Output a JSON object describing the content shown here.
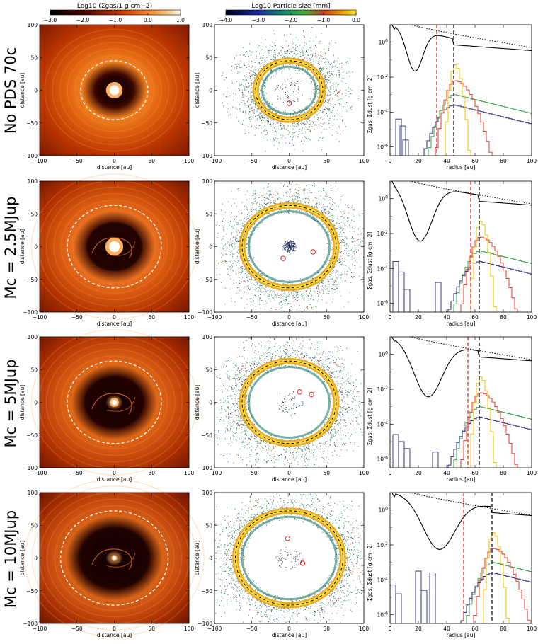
{
  "colorbars": {
    "gas": {
      "label": "Log10 (Σgas/1 g cm−2)",
      "ticks": [
        "−3.0",
        "−2.0",
        "−1.0",
        "0.0",
        "1.0"
      ]
    },
    "size": {
      "label": "Log10 Particle size [mm]",
      "ticks": [
        "−4.0",
        "−3.0",
        "−2.0",
        "−1.0",
        "0.0"
      ]
    }
  },
  "rows": [
    {
      "label": "No PDS 70c"
    },
    {
      "label": "Mc = 2.5MJup"
    },
    {
      "label": "Mc = 5MJup"
    },
    {
      "label": "Mc = 10MJup"
    }
  ],
  "axes": {
    "map_xlabel": "distance [au]",
    "map_ylabel": "distance [au]",
    "map_ticks": [
      "−100",
      "−50",
      "0",
      "50",
      "100"
    ],
    "profile_xlabel": "radius [au]",
    "profile_ylabel": "Σgas, Σdust [g cm−2]",
    "profile_xticks": [
      "0",
      "20",
      "40",
      "60",
      "80",
      "100"
    ],
    "profile_yticks": [
      "10^0",
      "10^-2",
      "10^-4",
      "10^-6"
    ]
  },
  "chart_data": {
    "type": "line",
    "xlim": [
      0,
      100
    ],
    "ylim_log10": [
      -6.5,
      1.0
    ],
    "series_colors": {
      "gas": "#000000",
      "initial_gas": "#000000",
      "size_1mm": "#f2c200",
      "size_01mm": "#e53a2a",
      "size_001mm": "#3aaa4c",
      "size_0001mm": "#2a2a78"
    },
    "panels": [
      {
        "red_line": 33,
        "black_line": 45
      },
      {
        "red_line": 57,
        "black_line": 63
      },
      {
        "red_line": 55,
        "black_line": 63
      },
      {
        "red_line": 52,
        "black_line": 72
      }
    ]
  }
}
